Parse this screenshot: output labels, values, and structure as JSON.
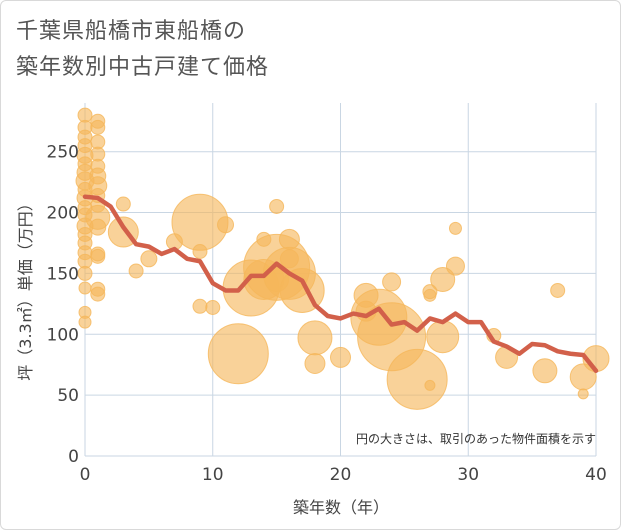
{
  "chart_data": {
    "type": "scatter",
    "title": [
      "千葉県船橋市東船橋の",
      "築年数別中古戸建て価格"
    ],
    "xlabel": "築年数（年）",
    "ylabel": "坪（3.3㎡）単価（万円）",
    "xlim": [
      0,
      40
    ],
    "ylim": [
      0,
      290
    ],
    "xticks": [
      0,
      10,
      20,
      30,
      40
    ],
    "yticks": [
      0,
      50,
      100,
      150,
      200,
      250
    ],
    "grid": true,
    "note": "円の大きさは、取引のあった物件面積を示す",
    "colors": {
      "bubble": "#f5b65a",
      "line": "#d2604a",
      "grid": "#c9d6e3"
    },
    "points": [
      {
        "x": 0,
        "y": 280,
        "s": 7
      },
      {
        "x": 0,
        "y": 270,
        "s": 7
      },
      {
        "x": 0,
        "y": 262,
        "s": 7
      },
      {
        "x": 0,
        "y": 255,
        "s": 7
      },
      {
        "x": 0,
        "y": 247,
        "s": 8
      },
      {
        "x": 0,
        "y": 240,
        "s": 7
      },
      {
        "x": 0,
        "y": 233,
        "s": 8
      },
      {
        "x": 0,
        "y": 226,
        "s": 9
      },
      {
        "x": 0,
        "y": 219,
        "s": 7
      },
      {
        "x": 0,
        "y": 212,
        "s": 8
      },
      {
        "x": 0,
        "y": 204,
        "s": 7
      },
      {
        "x": 0,
        "y": 198,
        "s": 7
      },
      {
        "x": 0,
        "y": 189,
        "s": 8
      },
      {
        "x": 0,
        "y": 182,
        "s": 7
      },
      {
        "x": 0,
        "y": 175,
        "s": 7
      },
      {
        "x": 0,
        "y": 167,
        "s": 7
      },
      {
        "x": 0,
        "y": 160,
        "s": 7
      },
      {
        "x": 0,
        "y": 150,
        "s": 7
      },
      {
        "x": 0,
        "y": 138,
        "s": 6
      },
      {
        "x": 0,
        "y": 118,
        "s": 6
      },
      {
        "x": 0,
        "y": 110,
        "s": 6
      },
      {
        "x": 1,
        "y": 275,
        "s": 7
      },
      {
        "x": 1,
        "y": 270,
        "s": 7
      },
      {
        "x": 1,
        "y": 258,
        "s": 7
      },
      {
        "x": 1,
        "y": 248,
        "s": 7
      },
      {
        "x": 1,
        "y": 238,
        "s": 7
      },
      {
        "x": 1,
        "y": 230,
        "s": 8
      },
      {
        "x": 1,
        "y": 222,
        "s": 9
      },
      {
        "x": 1,
        "y": 214,
        "s": 7
      },
      {
        "x": 1,
        "y": 206,
        "s": 7
      },
      {
        "x": 1,
        "y": 196,
        "s": 12
      },
      {
        "x": 1,
        "y": 188,
        "s": 8
      },
      {
        "x": 1,
        "y": 166,
        "s": 7
      },
      {
        "x": 1,
        "y": 164,
        "s": 7
      },
      {
        "x": 1,
        "y": 137,
        "s": 7
      },
      {
        "x": 1,
        "y": 133,
        "s": 7
      },
      {
        "x": 3,
        "y": 207,
        "s": 7
      },
      {
        "x": 3,
        "y": 184,
        "s": 15
      },
      {
        "x": 4,
        "y": 152,
        "s": 7
      },
      {
        "x": 5,
        "y": 162,
        "s": 8
      },
      {
        "x": 7,
        "y": 176,
        "s": 8
      },
      {
        "x": 9,
        "y": 192,
        "s": 28
      },
      {
        "x": 9,
        "y": 168,
        "s": 7
      },
      {
        "x": 9,
        "y": 123,
        "s": 7
      },
      {
        "x": 10,
        "y": 122,
        "s": 7
      },
      {
        "x": 11,
        "y": 190,
        "s": 8
      },
      {
        "x": 12,
        "y": 84,
        "s": 30
      },
      {
        "x": 13,
        "y": 138,
        "s": 28
      },
      {
        "x": 14,
        "y": 178,
        "s": 7
      },
      {
        "x": 14,
        "y": 145,
        "s": 20
      },
      {
        "x": 15,
        "y": 205,
        "s": 7
      },
      {
        "x": 15,
        "y": 155,
        "s": 33
      },
      {
        "x": 15,
        "y": 145,
        "s": 12
      },
      {
        "x": 16,
        "y": 178,
        "s": 10
      },
      {
        "x": 16,
        "y": 162,
        "s": 9
      },
      {
        "x": 16,
        "y": 150,
        "s": 26
      },
      {
        "x": 17,
        "y": 136,
        "s": 22
      },
      {
        "x": 18,
        "y": 97,
        "s": 17
      },
      {
        "x": 18,
        "y": 76,
        "s": 10
      },
      {
        "x": 20,
        "y": 81,
        "s": 10
      },
      {
        "x": 22,
        "y": 132,
        "s": 12
      },
      {
        "x": 22,
        "y": 119,
        "s": 10
      },
      {
        "x": 23,
        "y": 114,
        "s": 28
      },
      {
        "x": 24,
        "y": 98,
        "s": 34
      },
      {
        "x": 24,
        "y": 143,
        "s": 9
      },
      {
        "x": 26,
        "y": 63,
        "s": 30
      },
      {
        "x": 27,
        "y": 135,
        "s": 7
      },
      {
        "x": 27,
        "y": 132,
        "s": 6
      },
      {
        "x": 27,
        "y": 58,
        "s": 5
      },
      {
        "x": 28,
        "y": 145,
        "s": 12
      },
      {
        "x": 28,
        "y": 98,
        "s": 16
      },
      {
        "x": 29,
        "y": 187,
        "s": 6
      },
      {
        "x": 29,
        "y": 156,
        "s": 9
      },
      {
        "x": 32,
        "y": 99,
        "s": 7
      },
      {
        "x": 33,
        "y": 81,
        "s": 11
      },
      {
        "x": 36,
        "y": 70,
        "s": 12
      },
      {
        "x": 37,
        "y": 136,
        "s": 7
      },
      {
        "x": 39,
        "y": 51,
        "s": 5
      },
      {
        "x": 39,
        "y": 65,
        "s": 13
      },
      {
        "x": 40,
        "y": 80,
        "s": 13
      }
    ],
    "average_line": {
      "x": [
        0,
        1,
        2,
        3,
        4,
        5,
        6,
        7,
        8,
        9,
        10,
        11,
        12,
        13,
        14,
        15,
        16,
        17,
        18,
        19,
        20,
        21,
        22,
        23,
        24,
        25,
        26,
        27,
        28,
        29,
        30,
        31,
        32,
        33,
        34,
        35,
        36,
        37,
        38,
        39,
        40
      ],
      "y": [
        213,
        212,
        205,
        188,
        174,
        172,
        166,
        170,
        162,
        160,
        142,
        136,
        136,
        148,
        148,
        158,
        150,
        144,
        124,
        115,
        113,
        117,
        115,
        121,
        108,
        110,
        103,
        113,
        110,
        117,
        110,
        110,
        94,
        90,
        84,
        92,
        91,
        86,
        84,
        83,
        70
      ]
    }
  }
}
